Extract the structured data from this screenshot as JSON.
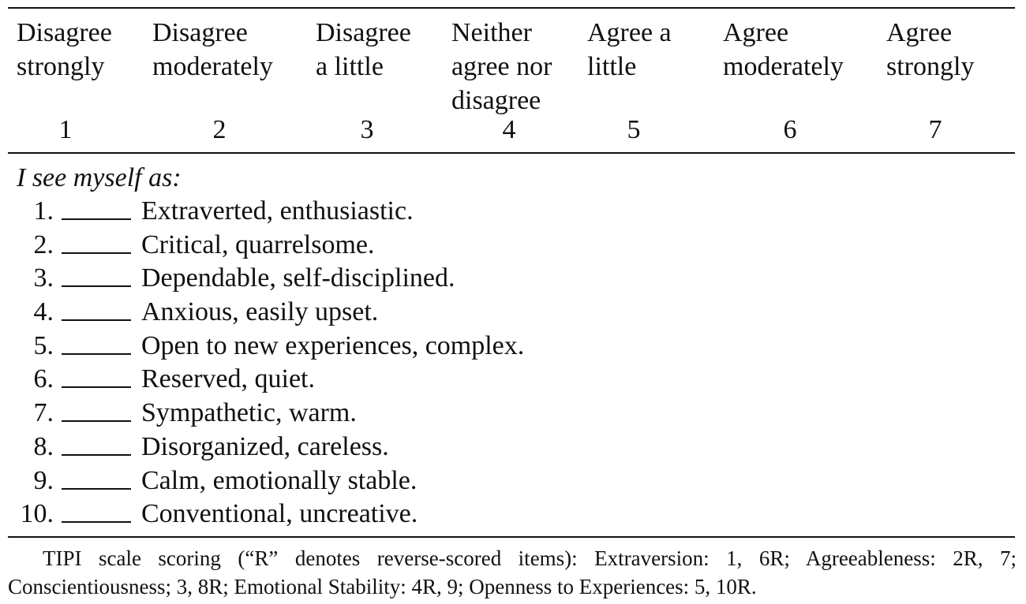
{
  "scale": [
    {
      "label": "Disagree\nstrongly",
      "value": "1"
    },
    {
      "label": "Disagree\nmoderately",
      "value": "2"
    },
    {
      "label": "Disagree\na little",
      "value": "3"
    },
    {
      "label": "Neither\nagree nor\ndisagree",
      "value": "4"
    },
    {
      "label": "Agree a\nlittle",
      "value": "5"
    },
    {
      "label": "Agree\nmoderately",
      "value": "6"
    },
    {
      "label": "Agree\nstrongly",
      "value": "7"
    }
  ],
  "prompt": "I see myself as:",
  "blank": "_____",
  "items": [
    {
      "number": "1.",
      "text": "Extraverted, enthusiastic."
    },
    {
      "number": "2.",
      "text": "Critical, quarrelsome."
    },
    {
      "number": "3.",
      "text": "Dependable, self-disciplined."
    },
    {
      "number": "4.",
      "text": "Anxious, easily upset."
    },
    {
      "number": "5.",
      "text": "Open to new experiences, complex."
    },
    {
      "number": "6.",
      "text": "Reserved, quiet."
    },
    {
      "number": "7.",
      "text": "Sympathetic, warm."
    },
    {
      "number": "8.",
      "text": "Disorganized, careless."
    },
    {
      "number": "9.",
      "text": "Calm, emotionally stable."
    },
    {
      "number": "10.",
      "text": "Conventional, uncreative."
    }
  ],
  "footnote": "TIPI scale scoring (“R” denotes reverse-scored items): Extraversion: 1, 6R; Agreeableness: 2R, 7; Conscientiousness; 3, 8R; Emotional Stability: 4R, 9; Openness to Experiences: 5, 10R."
}
